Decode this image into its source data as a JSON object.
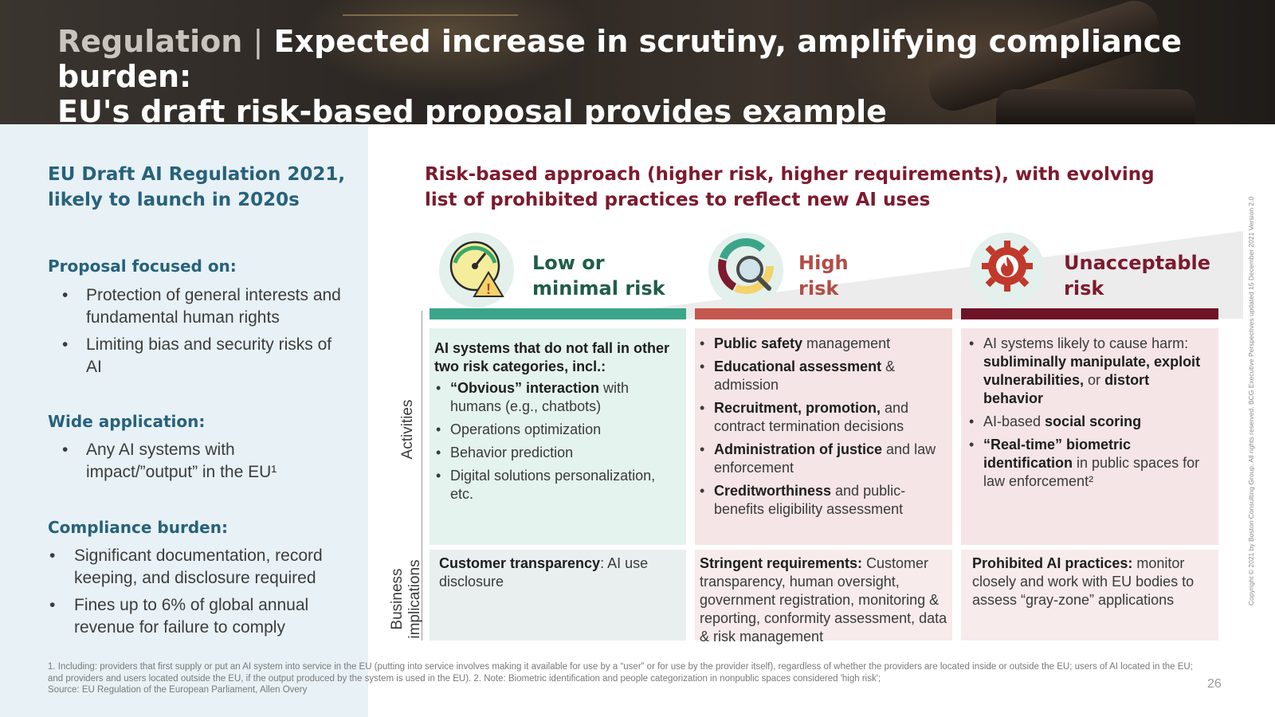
{
  "header": {
    "section": "Regulation",
    "separator": "|",
    "title_line1": "Expected increase in scrutiny, amplifying compliance burden:",
    "title_line2": "EU's draft risk-based proposal provides example"
  },
  "left_panel": {
    "title": "EU Draft AI Regulation 2021, likely to launch in 2020s",
    "sections": [
      {
        "heading": "Proposal focused on:",
        "items": [
          "Protection of general interests and fundamental human rights",
          "Limiting bias and security risks of AI"
        ]
      },
      {
        "heading": "Wide application:",
        "items": [
          "Any AI systems with impact/”output” in the EU¹"
        ]
      },
      {
        "heading": "Compliance burden:",
        "items": [
          "Significant documentation, record keeping, and disclosure required",
          "Fines up to 6% of global annual revenue for failure to comply"
        ]
      }
    ]
  },
  "right_panel": {
    "title": "Risk-based approach (higher risk, higher requirements), with evolving list of prohibited practices to reflect new AI uses",
    "row_labels": {
      "activities": "Activities",
      "business_line1": "Business",
      "business_line2": "implications"
    },
    "columns": [
      {
        "icon": "gauge-warning-icon",
        "title_line1": "Low or",
        "title_line2": "minimal risk",
        "color": "#3ba58a",
        "activities_intro": "AI systems that do not fall in other two risk categories, incl.:",
        "activities": [
          {
            "bold": "“Obvious” interaction",
            "text": " with humans (e.g., chatbots)"
          },
          {
            "bold": "",
            "text": "Operations optimization"
          },
          {
            "bold": "",
            "text": "Behavior prediction"
          },
          {
            "bold": "",
            "text": "Digital solutions personalization, etc."
          }
        ],
        "impl_bold": "Customer transparency",
        "impl_text": ": AI use disclosure"
      },
      {
        "icon": "magnifier-chart-icon",
        "title_line1": "High",
        "title_line2": "risk",
        "color": "#c4574e",
        "activities": [
          {
            "bold": "Public safety",
            "text": " management"
          },
          {
            "bold": "Educational assessment",
            "text": " & admission"
          },
          {
            "bold": "Recruitment, promotion,",
            "text": " and contract termination decisions"
          },
          {
            "bold": "Administration of justice",
            "text": " and law enforcement"
          },
          {
            "bold": "Creditworthiness",
            "text": " and public-benefits eligibility assessment"
          }
        ],
        "impl_bold": "Stringent requirements:",
        "impl_text": " Customer transparency, human oversight, government registration, monitoring & reporting, conformity assessment, data & risk management"
      },
      {
        "icon": "gear-fire-icon",
        "title_line1": "Unacceptable",
        "title_line2": "risk",
        "color": "#6e1427",
        "activities": [
          {
            "pre": "AI systems likely to cause harm: ",
            "bold": "subliminally manipulate, exploit vulnerabilities,",
            "text": " or ",
            "bold2": "distort behavior"
          },
          {
            "pre": "AI-based ",
            "bold": "social scoring",
            "text": ""
          },
          {
            "pre": "",
            "bold": "“Real-time” biometric identification",
            "text": " in public spaces for law enforcement²"
          }
        ],
        "impl_bold": "Prohibited AI practices:",
        "impl_text": " monitor closely and work with EU bodies to assess “gray-zone” applications"
      }
    ]
  },
  "footer": {
    "note1": "1. Including: providers that first supply or put an AI system into service in the EU (putting into service involves making it available for use by a “user” or for use by the provider itself), regardless of whether the providers are located inside or outside the EU; users of AI located in the EU; and providers and users located outside the EU, if the output produced by the system is used in the EU). 2. Note: Biometric identification and people categorization in nonpublic spaces considered 'high risk';",
    "source": "Source: EU Regulation of the European Parliament, Allen Overy",
    "page": "26",
    "copyright": "Copyright © 2021 by Boston Consulting Group. All rights reserved. BCG Executive Perspectives updated 15 December 2021 Version 2.0"
  },
  "colors": {
    "teal": "#3ba58a",
    "red": "#c4574e",
    "maroon": "#6e1427",
    "blue_heading": "#27627c",
    "title_maroon": "#7d1a2e"
  }
}
